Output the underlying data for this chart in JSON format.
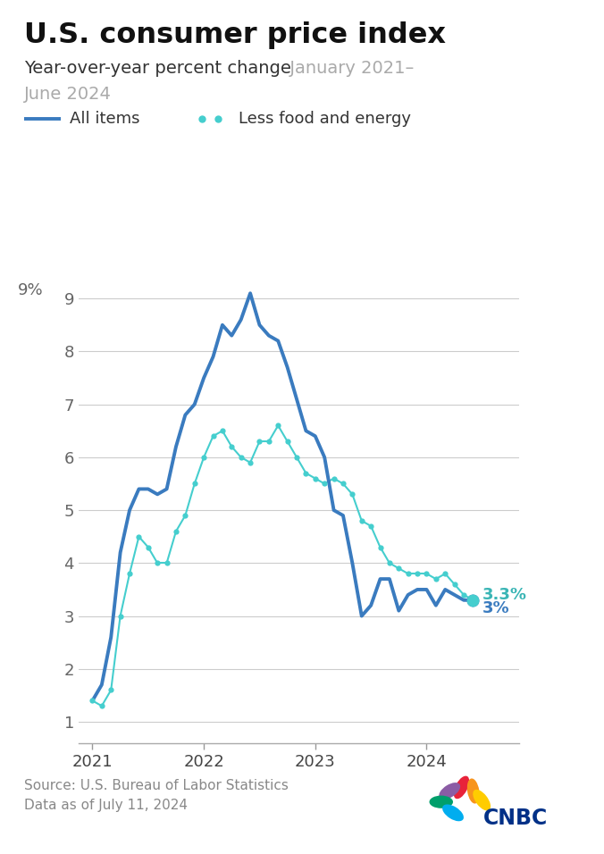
{
  "title": "U.S. consumer price index",
  "subtitle_black": "Year-over-year percent change",
  "subtitle_gray": " January 2021–",
  "subtitle_gray2": "June 2024",
  "source_line1": "Source: U.S. Bureau of Labor Statistics",
  "source_line2": "Data as of July 11, 2024",
  "legend_line1": "All items",
  "legend_line2": "Less food and energy",
  "all_items_color": "#3a7bbf",
  "core_color": "#45cece",
  "end_label_color_core": "#3ab5b5",
  "end_label_color_all": "#3a7bbf",
  "title_color": "#111111",
  "subtitle_color": "#333333",
  "subtitle_gray_color": "#aaaaaa",
  "source_color": "#888888",
  "ylabel_color": "#666666",
  "grid_color": "#cccccc",
  "background_color": "#ffffff",
  "ylim": [
    0.6,
    9.8
  ],
  "yticks": [
    1,
    2,
    3,
    4,
    5,
    6,
    7,
    8,
    9
  ],
  "end_label_core": "3.3%",
  "end_label_all": "3%",
  "all_items": [
    1.4,
    1.7,
    2.6,
    4.2,
    5.0,
    5.4,
    5.4,
    5.3,
    5.4,
    6.2,
    6.8,
    7.0,
    7.5,
    7.9,
    8.5,
    8.3,
    8.6,
    9.1,
    8.5,
    8.3,
    8.2,
    7.7,
    7.1,
    6.5,
    6.4,
    6.0,
    5.0,
    4.9,
    4.0,
    3.0,
    3.2,
    3.7,
    3.7,
    3.1,
    3.4,
    3.5,
    3.5,
    3.2,
    3.5,
    3.4,
    3.3,
    3.3
  ],
  "core_items": [
    1.4,
    1.3,
    1.6,
    3.0,
    3.8,
    4.5,
    4.3,
    4.0,
    4.0,
    4.6,
    4.9,
    5.5,
    6.0,
    6.4,
    6.5,
    6.2,
    6.0,
    5.9,
    6.3,
    6.3,
    6.6,
    6.3,
    6.0,
    5.7,
    5.6,
    5.5,
    5.6,
    5.5,
    5.3,
    4.8,
    4.7,
    4.3,
    4.0,
    3.9,
    3.8,
    3.8,
    3.8,
    3.7,
    3.8,
    3.6,
    3.4,
    3.3
  ],
  "n_months": 42,
  "cnbc_feather_colors": [
    "#e8233a",
    "#f7941d",
    "#ffcb05",
    "#8b5ca5",
    "#009f6b",
    "#00adef"
  ],
  "cnbc_text_color": "#003087"
}
